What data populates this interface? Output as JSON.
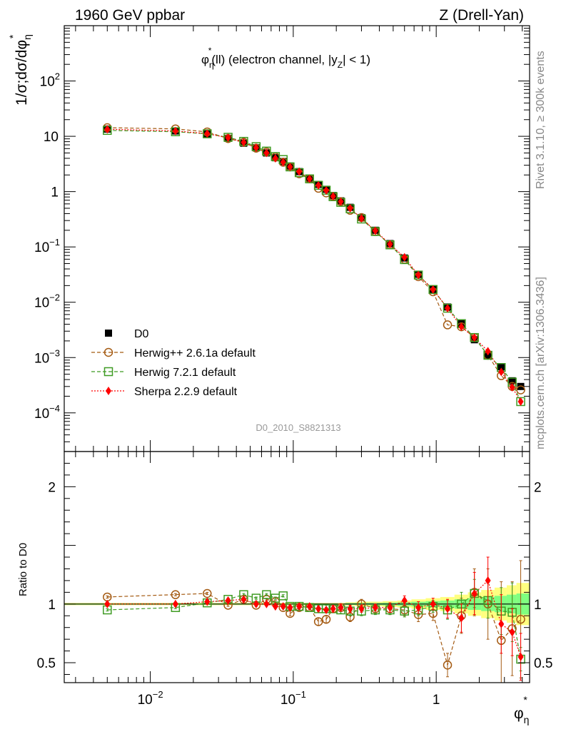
{
  "header": {
    "left": "1960 GeV ppbar",
    "right": "Z (Drell-Yan)"
  },
  "side_text": {
    "rivet": "Rivet 3.1.10, ≥ 300k events",
    "mcplots": "mcplots.cern.ch [arXiv:1306.3436]"
  },
  "colors": {
    "data": "#000000",
    "herwigpp": "#a45a12",
    "herwig7": "#3f9b23",
    "sherpa": "#ff0000",
    "band_yellow": "#ffff80",
    "band_green": "#80ff80"
  },
  "chart_data": [
    {
      "type": "scatter",
      "title_main": "φ",
      "title_sup": "*",
      "title_sub": "η",
      "title_rest": "(ll) (electron channel, |y",
      "title_rest_sub": "Z",
      "title_rest_end": "| < 1)",
      "ylabel": "1/σ;dσ/dφ",
      "ylabel_sup": "*",
      "ylabel_sub": "η",
      "xscale": "log",
      "yscale": "log",
      "xlim": [
        0.0025,
        4.5
      ],
      "ylim": [
        2e-05,
        1000
      ],
      "watermark": "D0_2010_S8821313",
      "y_ticks": [
        {
          "value": 0.0001,
          "base": "10",
          "exp": "−4"
        },
        {
          "value": 0.001,
          "base": "10",
          "exp": "−3"
        },
        {
          "value": 0.01,
          "base": "10",
          "exp": "−2"
        },
        {
          "value": 0.1,
          "base": "10",
          "exp": "−1"
        },
        {
          "value": 1,
          "base": "1",
          "exp": ""
        },
        {
          "value": 10,
          "base": "10",
          "exp": ""
        },
        {
          "value": 100,
          "base": "10",
          "exp": "2"
        }
      ],
      "legend": [
        {
          "key": "data",
          "label": "D0"
        },
        {
          "key": "herwigpp",
          "label": "Herwig++ 2.6.1a default"
        },
        {
          "key": "herwig7",
          "label": "Herwig 7.2.1 default"
        },
        {
          "key": "sherpa",
          "label": "Sherpa 2.2.9 default"
        }
      ],
      "x": [
        0.005,
        0.015,
        0.025,
        0.035,
        0.045,
        0.055,
        0.065,
        0.075,
        0.085,
        0.095,
        0.11,
        0.13,
        0.15,
        0.17,
        0.19,
        0.215,
        0.25,
        0.3,
        0.375,
        0.475,
        0.6,
        0.75,
        0.95,
        1.2,
        1.5,
        1.85,
        2.3,
        2.85,
        3.4,
        3.9
      ],
      "series": [
        {
          "key": "data",
          "name": "D0",
          "values": [
            13.5,
            12.5,
            11.0,
            9.2,
            7.5,
            6.2,
            5.0,
            4.1,
            3.5,
            2.9,
            2.3,
            1.75,
            1.35,
            1.1,
            0.85,
            0.68,
            0.52,
            0.34,
            0.2,
            0.115,
            0.063,
            0.032,
            0.017,
            0.0082,
            0.0041,
            0.0021,
            0.0011,
            0.00068,
            0.00038,
            0.0003
          ]
        },
        {
          "key": "herwigpp",
          "name": "Herwig++ 2.6.1a default",
          "values": [
            14.3,
            13.6,
            12.0,
            9.1,
            7.8,
            6.1,
            5.2,
            4.2,
            3.4,
            2.8,
            2.1,
            1.7,
            1.15,
            0.95,
            0.82,
            0.66,
            0.46,
            0.34,
            0.19,
            0.11,
            0.06,
            0.029,
            0.0155,
            0.0039,
            0.0036,
            0.0023,
            0.0011,
            0.00047,
            0.0003,
            0.00026
          ]
        },
        {
          "key": "herwig7",
          "name": "Herwig 7.2.1 default",
          "values": [
            12.8,
            12.1,
            11.1,
            9.6,
            8.1,
            6.5,
            5.4,
            4.3,
            3.8,
            2.8,
            2.2,
            1.7,
            1.3,
            1.06,
            0.81,
            0.64,
            0.49,
            0.32,
            0.19,
            0.109,
            0.059,
            0.031,
            0.017,
            0.0078,
            0.0041,
            0.0023,
            0.0011,
            0.00066,
            0.00036,
            0.00016
          ]
        },
        {
          "key": "sherpa",
          "name": "Sherpa 2.2.9 default",
          "values": [
            13.4,
            12.5,
            11.2,
            9.4,
            7.8,
            6.2,
            5.0,
            4.0,
            3.4,
            2.8,
            2.3,
            1.7,
            1.3,
            1.05,
            0.82,
            0.66,
            0.5,
            0.33,
            0.195,
            0.112,
            0.065,
            0.031,
            0.017,
            0.0078,
            0.0036,
            0.0023,
            0.0013,
            0.00055,
            0.00029,
            0.00016
          ]
        }
      ]
    },
    {
      "type": "scatter",
      "ylabel": "Ratio to D0",
      "xlabel": "φ",
      "xlabel_sup": "*",
      "xlabel_sub": "η",
      "xscale": "log",
      "xlim": [
        0.0025,
        4.5
      ],
      "ylim": [
        0.33,
        2.3
      ],
      "y_tick_labels": [
        {
          "value": 0.5,
          "label": "0.5"
        },
        {
          "value": 1,
          "label": "1"
        },
        {
          "value": 2,
          "label": "2"
        }
      ],
      "x_tick_labels": [
        {
          "value": 0.01,
          "base": "10",
          "exp": "−2"
        },
        {
          "value": 0.1,
          "base": "10",
          "exp": "−1"
        },
        {
          "value": 1,
          "base": "1",
          "exp": ""
        }
      ],
      "x": [
        0.005,
        0.015,
        0.025,
        0.035,
        0.045,
        0.055,
        0.065,
        0.075,
        0.085,
        0.095,
        0.11,
        0.13,
        0.15,
        0.17,
        0.19,
        0.215,
        0.25,
        0.3,
        0.375,
        0.475,
        0.6,
        0.75,
        0.95,
        1.2,
        1.5,
        1.85,
        2.3,
        2.85,
        3.4,
        3.9
      ],
      "band_yellow": [
        0.01,
        0.01,
        0.01,
        0.01,
        0.01,
        0.01,
        0.01,
        0.01,
        0.01,
        0.01,
        0.01,
        0.01,
        0.01,
        0.01,
        0.01,
        0.01,
        0.015,
        0.02,
        0.02,
        0.025,
        0.03,
        0.04,
        0.05,
        0.06,
        0.08,
        0.1,
        0.12,
        0.14,
        0.16,
        0.18
      ],
      "band_green": [
        0.005,
        0.005,
        0.005,
        0.005,
        0.005,
        0.005,
        0.005,
        0.005,
        0.005,
        0.005,
        0.005,
        0.005,
        0.005,
        0.005,
        0.005,
        0.005,
        0.008,
        0.01,
        0.01,
        0.012,
        0.015,
        0.02,
        0.025,
        0.03,
        0.04,
        0.05,
        0.06,
        0.07,
        0.08,
        0.09
      ],
      "series": [
        {
          "key": "herwigpp",
          "name": "Herwig++ 2.6.1a default",
          "values": [
            1.06,
            1.08,
            1.09,
            0.99,
            1.04,
            0.99,
            1.04,
            1.02,
            0.97,
            0.92,
            0.97,
            0.97,
            0.85,
            0.87,
            0.96,
            0.97,
            0.89,
            1.0,
            0.96,
            0.96,
            0.95,
            0.91,
            0.92,
            0.48,
            0.9,
            1.1,
            1.0,
            0.69,
            0.79,
            0.87
          ]
        },
        {
          "key": "herwig7",
          "name": "Herwig 7.2.1 default",
          "values": [
            0.95,
            0.97,
            1.01,
            1.04,
            1.08,
            1.05,
            1.08,
            1.05,
            1.07,
            0.98,
            0.98,
            0.97,
            0.96,
            0.96,
            0.96,
            0.95,
            0.94,
            0.94,
            0.95,
            0.95,
            0.94,
            0.95,
            0.98,
            0.95,
            1.0,
            1.09,
            1.03,
            0.94,
            0.93,
            0.53
          ]
        },
        {
          "key": "sherpa",
          "name": "Sherpa 2.2.9 default",
          "values": [
            1.0,
            1.0,
            1.02,
            1.03,
            1.04,
            1.0,
            1.0,
            0.98,
            0.98,
            0.97,
            0.98,
            0.98,
            0.96,
            0.95,
            0.96,
            0.97,
            0.96,
            0.96,
            0.97,
            0.97,
            1.03,
            0.97,
            1.0,
            0.96,
            0.88,
            1.09,
            1.2,
            0.83,
            0.76,
            0.55
          ]
        }
      ],
      "errors": {
        "herwigpp": [
          0.01,
          0.01,
          0.01,
          0.01,
          0.01,
          0.01,
          0.01,
          0.01,
          0.01,
          0.02,
          0.02,
          0.02,
          0.03,
          0.03,
          0.03,
          0.03,
          0.04,
          0.04,
          0.04,
          0.05,
          0.05,
          0.06,
          0.06,
          0.1,
          0.15,
          0.2,
          0.3,
          0.5,
          0.4,
          0.5
        ],
        "herwig7": [
          0.01,
          0.01,
          0.01,
          0.01,
          0.01,
          0.01,
          0.01,
          0.01,
          0.01,
          0.02,
          0.02,
          0.02,
          0.03,
          0.03,
          0.03,
          0.03,
          0.04,
          0.04,
          0.04,
          0.04,
          0.05,
          0.05,
          0.05,
          0.08,
          0.1,
          0.12,
          0.15,
          0.2,
          0.25,
          0.1
        ],
        "sherpa": [
          0.01,
          0.01,
          0.01,
          0.01,
          0.01,
          0.01,
          0.01,
          0.01,
          0.01,
          0.02,
          0.02,
          0.02,
          0.02,
          0.02,
          0.03,
          0.03,
          0.03,
          0.03,
          0.03,
          0.04,
          0.04,
          0.05,
          0.05,
          0.08,
          0.12,
          0.18,
          0.2,
          0.25,
          0.2,
          0.2
        ]
      }
    }
  ]
}
